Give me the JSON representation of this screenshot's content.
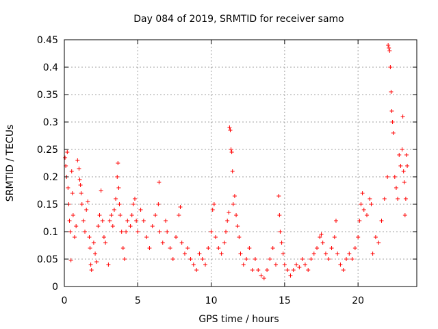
{
  "chart_data": {
    "type": "scatter",
    "title": "Day 084 of 2019, SRMTID for receiver samo",
    "xlabel": "GPS time / hours",
    "ylabel": "SRMTID / TECUs",
    "xlim": [
      0,
      24
    ],
    "ylim": [
      0,
      0.45
    ],
    "xticks": [
      0,
      5,
      10,
      15,
      20
    ],
    "yticks": [
      0,
      0.05,
      0.1,
      0.15,
      0.2,
      0.25,
      0.3,
      0.35,
      0.4,
      0.45
    ],
    "xtick_labels": [
      "0",
      "5",
      "10",
      "15",
      "20"
    ],
    "ytick_labels": [
      "0",
      "0.05",
      "0.1",
      "0.15",
      "0.2",
      "0.25",
      "0.3",
      "0.35",
      "0.4",
      "0.45"
    ],
    "grid": true,
    "marker": "+",
    "color": "#ff0000",
    "series": [
      {
        "name": "SRMTID",
        "points": [
          [
            0.05,
            0.235
          ],
          [
            0.1,
            0.22
          ],
          [
            0.15,
            0.2
          ],
          [
            0.2,
            0.245
          ],
          [
            0.25,
            0.18
          ],
          [
            0.3,
            0.15
          ],
          [
            0.35,
            0.12
          ],
          [
            0.4,
            0.1
          ],
          [
            0.45,
            0.048
          ],
          [
            0.5,
            0.21
          ],
          [
            0.55,
            0.17
          ],
          [
            0.6,
            0.13
          ],
          [
            0.7,
            0.09
          ],
          [
            0.8,
            0.11
          ],
          [
            0.9,
            0.23
          ],
          [
            1.0,
            0.215
          ],
          [
            1.05,
            0.195
          ],
          [
            1.1,
            0.185
          ],
          [
            1.15,
            0.17
          ],
          [
            1.2,
            0.15
          ],
          [
            1.3,
            0.12
          ],
          [
            1.4,
            0.1
          ],
          [
            1.5,
            0.14
          ],
          [
            1.6,
            0.155
          ],
          [
            1.7,
            0.09
          ],
          [
            1.75,
            0.07
          ],
          [
            1.8,
            0.04
          ],
          [
            1.85,
            0.03
          ],
          [
            2.0,
            0.08
          ],
          [
            2.1,
            0.06
          ],
          [
            2.2,
            0.045
          ],
          [
            2.3,
            0.11
          ],
          [
            2.4,
            0.13
          ],
          [
            2.5,
            0.175
          ],
          [
            2.6,
            0.12
          ],
          [
            2.7,
            0.09
          ],
          [
            2.8,
            0.08
          ],
          [
            3.0,
            0.04
          ],
          [
            3.1,
            0.12
          ],
          [
            3.2,
            0.13
          ],
          [
            3.3,
            0.11
          ],
          [
            3.4,
            0.14
          ],
          [
            3.5,
            0.16
          ],
          [
            3.6,
            0.2
          ],
          [
            3.65,
            0.225
          ],
          [
            3.7,
            0.18
          ],
          [
            3.75,
            0.15
          ],
          [
            3.8,
            0.13
          ],
          [
            3.9,
            0.1
          ],
          [
            4.0,
            0.07
          ],
          [
            4.1,
            0.05
          ],
          [
            4.2,
            0.1
          ],
          [
            4.3,
            0.12
          ],
          [
            4.5,
            0.11
          ],
          [
            4.6,
            0.13
          ],
          [
            4.7,
            0.15
          ],
          [
            4.8,
            0.16
          ],
          [
            4.9,
            0.12
          ],
          [
            5.0,
            0.1
          ],
          [
            5.2,
            0.14
          ],
          [
            5.4,
            0.12
          ],
          [
            5.6,
            0.09
          ],
          [
            5.8,
            0.07
          ],
          [
            6.0,
            0.11
          ],
          [
            6.2,
            0.13
          ],
          [
            6.4,
            0.15
          ],
          [
            6.45,
            0.19
          ],
          [
            6.5,
            0.1
          ],
          [
            6.7,
            0.08
          ],
          [
            6.9,
            0.12
          ],
          [
            7.0,
            0.1
          ],
          [
            7.2,
            0.07
          ],
          [
            7.4,
            0.05
          ],
          [
            7.6,
            0.09
          ],
          [
            7.8,
            0.13
          ],
          [
            7.9,
            0.145
          ],
          [
            8.0,
            0.08
          ],
          [
            8.2,
            0.06
          ],
          [
            8.4,
            0.07
          ],
          [
            8.6,
            0.05
          ],
          [
            8.8,
            0.04
          ],
          [
            9.0,
            0.03
          ],
          [
            9.2,
            0.06
          ],
          [
            9.4,
            0.05
          ],
          [
            9.6,
            0.04
          ],
          [
            9.8,
            0.07
          ],
          [
            10.0,
            0.1
          ],
          [
            10.1,
            0.14
          ],
          [
            10.2,
            0.15
          ],
          [
            10.3,
            0.09
          ],
          [
            10.5,
            0.07
          ],
          [
            10.7,
            0.06
          ],
          [
            10.9,
            0.08
          ],
          [
            11.0,
            0.1
          ],
          [
            11.1,
            0.12
          ],
          [
            11.2,
            0.135
          ],
          [
            11.25,
            0.29
          ],
          [
            11.3,
            0.285
          ],
          [
            11.35,
            0.25
          ],
          [
            11.4,
            0.245
          ],
          [
            11.45,
            0.21
          ],
          [
            11.5,
            0.15
          ],
          [
            11.6,
            0.165
          ],
          [
            11.7,
            0.13
          ],
          [
            11.8,
            0.11
          ],
          [
            11.9,
            0.09
          ],
          [
            12.0,
            0.06
          ],
          [
            12.2,
            0.04
          ],
          [
            12.4,
            0.05
          ],
          [
            12.6,
            0.07
          ],
          [
            12.8,
            0.03
          ],
          [
            13.0,
            0.05
          ],
          [
            13.2,
            0.03
          ],
          [
            13.4,
            0.02
          ],
          [
            13.6,
            0.015
          ],
          [
            13.8,
            0.03
          ],
          [
            14.0,
            0.05
          ],
          [
            14.2,
            0.07
          ],
          [
            14.4,
            0.04
          ],
          [
            14.6,
            0.165
          ],
          [
            14.65,
            0.13
          ],
          [
            14.7,
            0.1
          ],
          [
            14.8,
            0.08
          ],
          [
            14.9,
            0.06
          ],
          [
            15.0,
            0.04
          ],
          [
            15.2,
            0.03
          ],
          [
            15.4,
            0.02
          ],
          [
            15.6,
            0.03
          ],
          [
            15.8,
            0.04
          ],
          [
            16.0,
            0.035
          ],
          [
            16.2,
            0.05
          ],
          [
            16.4,
            0.04
          ],
          [
            16.6,
            0.03
          ],
          [
            16.8,
            0.05
          ],
          [
            17.0,
            0.06
          ],
          [
            17.2,
            0.07
          ],
          [
            17.4,
            0.09
          ],
          [
            17.5,
            0.095
          ],
          [
            17.6,
            0.08
          ],
          [
            17.8,
            0.06
          ],
          [
            18.0,
            0.05
          ],
          [
            18.2,
            0.07
          ],
          [
            18.4,
            0.09
          ],
          [
            18.5,
            0.12
          ],
          [
            18.6,
            0.06
          ],
          [
            18.8,
            0.04
          ],
          [
            19.0,
            0.03
          ],
          [
            19.2,
            0.05
          ],
          [
            19.4,
            0.06
          ],
          [
            19.6,
            0.05
          ],
          [
            19.8,
            0.07
          ],
          [
            20.0,
            0.09
          ],
          [
            20.1,
            0.12
          ],
          [
            20.2,
            0.15
          ],
          [
            20.3,
            0.17
          ],
          [
            20.4,
            0.14
          ],
          [
            20.6,
            0.13
          ],
          [
            20.8,
            0.16
          ],
          [
            20.9,
            0.15
          ],
          [
            21.0,
            0.06
          ],
          [
            21.2,
            0.09
          ],
          [
            21.4,
            0.08
          ],
          [
            21.6,
            0.12
          ],
          [
            21.8,
            0.16
          ],
          [
            22.0,
            0.2
          ],
          [
            22.05,
            0.44
          ],
          [
            22.1,
            0.435
          ],
          [
            22.15,
            0.43
          ],
          [
            22.2,
            0.4
          ],
          [
            22.25,
            0.355
          ],
          [
            22.3,
            0.32
          ],
          [
            22.35,
            0.3
          ],
          [
            22.4,
            0.28
          ],
          [
            22.5,
            0.2
          ],
          [
            22.6,
            0.18
          ],
          [
            22.7,
            0.16
          ],
          [
            22.8,
            0.24
          ],
          [
            22.9,
            0.22
          ],
          [
            23.0,
            0.25
          ],
          [
            23.05,
            0.31
          ],
          [
            23.1,
            0.21
          ],
          [
            23.15,
            0.19
          ],
          [
            23.2,
            0.13
          ],
          [
            23.25,
            0.16
          ],
          [
            23.3,
            0.24
          ],
          [
            23.35,
            0.22
          ]
        ]
      }
    ]
  }
}
